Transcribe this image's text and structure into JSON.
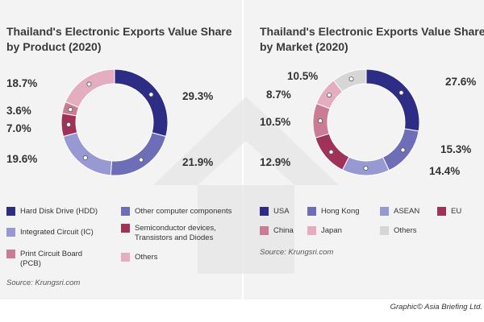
{
  "colors": {
    "usa": "#2d2d86",
    "hong_kong": "#6d6db8",
    "asean": "#9898d2",
    "eu": "#a0325a",
    "china": "#c97c94",
    "japan": "#e4aec0",
    "others_market": "#d6d6d6",
    "hdd": "#2d2d86",
    "other_computer": "#6d6db8",
    "ic": "#9898d2",
    "semiconductor": "#a0325a",
    "pcb": "#c97c94",
    "others_product": "#e4aec0"
  },
  "chart_data": [
    {
      "type": "pie",
      "title": "Thailand's Electronic Exports Value Share by Product (2020)",
      "categories": [
        "Hard Disk Drive (HDD)",
        "Other computer components",
        "Integrated Circuit (IC)",
        "Semiconductor devices, Transistors and Diodes",
        "Print Circuit Board (PCB)",
        "Others"
      ],
      "values": [
        29.3,
        21.9,
        19.6,
        7.0,
        3.6,
        18.7
      ],
      "value_labels": [
        "29.3%",
        "21.9%",
        "19.6%",
        "7.0%",
        "3.6%",
        "18.7%"
      ],
      "legend": [
        {
          "label": "Hard Disk Drive (HDD)",
          "color": "#2d2d86"
        },
        {
          "label": "Other computer components",
          "color": "#6d6db8"
        },
        {
          "label": "Integrated Circuit (IC)",
          "color": "#9898d2"
        },
        {
          "label": "Semiconductor devices, Transistors and Diodes",
          "color": "#a0325a"
        },
        {
          "label": "Print Circuit Board (PCB)",
          "color": "#c97c94"
        },
        {
          "label": "Others",
          "color": "#e4aec0"
        }
      ],
      "colors": [
        "#2d2d86",
        "#6d6db8",
        "#9898d2",
        "#a0325a",
        "#c97c94",
        "#e4aec0"
      ],
      "source": "Source: Krungsri.com"
    },
    {
      "type": "pie",
      "title": "Thailand's Electronic Exports Value Share by Market (2020)",
      "categories": [
        "USA",
        "Hong Kong",
        "ASEAN",
        "EU",
        "China",
        "Japan",
        "Others"
      ],
      "values": [
        27.6,
        15.3,
        14.4,
        12.9,
        10.5,
        8.7,
        10.5
      ],
      "value_labels": [
        "27.6%",
        "15.3%",
        "14.4%",
        "12.9%",
        "10.5%",
        "8.7%",
        "10.5%"
      ],
      "legend": [
        {
          "label": "USA",
          "color": "#2d2d86"
        },
        {
          "label": "Hong Kong",
          "color": "#6d6db8"
        },
        {
          "label": "ASEAN",
          "color": "#9898d2"
        },
        {
          "label": "EU",
          "color": "#a0325a"
        },
        {
          "label": "China",
          "color": "#c97c94"
        },
        {
          "label": "Japan",
          "color": "#e4aec0"
        },
        {
          "label": "Others",
          "color": "#d6d6d6"
        }
      ],
      "colors": [
        "#2d2d86",
        "#6d6db8",
        "#9898d2",
        "#a0325a",
        "#c97c94",
        "#e4aec0",
        "#d6d6d6"
      ],
      "source": "Source: Krungsri.com"
    }
  ],
  "credit": "Graphic© Asia Briefing Ltd."
}
